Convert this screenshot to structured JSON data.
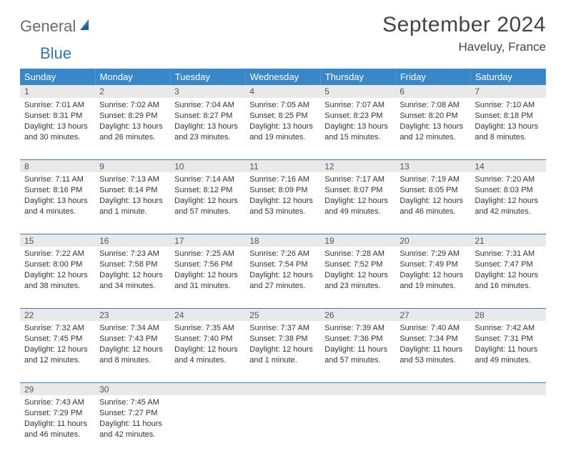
{
  "header": {
    "logo_text1": "General",
    "logo_text2": "Blue",
    "month_title": "September 2024",
    "location": "Haveluy, France"
  },
  "day_headers": [
    "Sunday",
    "Monday",
    "Tuesday",
    "Wednesday",
    "Thursday",
    "Friday",
    "Saturday"
  ],
  "colors": {
    "header_bg": "#3a87c8",
    "row_divider": "#4679a8",
    "daynum_bg": "#e9e9e9"
  },
  "weeks": [
    {
      "days": [
        {
          "num": "1",
          "sunrise": "Sunrise: 7:01 AM",
          "sunset": "Sunset: 8:31 PM",
          "day1": "Daylight: 13 hours",
          "day2": "and 30 minutes."
        },
        {
          "num": "2",
          "sunrise": "Sunrise: 7:02 AM",
          "sunset": "Sunset: 8:29 PM",
          "day1": "Daylight: 13 hours",
          "day2": "and 26 minutes."
        },
        {
          "num": "3",
          "sunrise": "Sunrise: 7:04 AM",
          "sunset": "Sunset: 8:27 PM",
          "day1": "Daylight: 13 hours",
          "day2": "and 23 minutes."
        },
        {
          "num": "4",
          "sunrise": "Sunrise: 7:05 AM",
          "sunset": "Sunset: 8:25 PM",
          "day1": "Daylight: 13 hours",
          "day2": "and 19 minutes."
        },
        {
          "num": "5",
          "sunrise": "Sunrise: 7:07 AM",
          "sunset": "Sunset: 8:23 PM",
          "day1": "Daylight: 13 hours",
          "day2": "and 15 minutes."
        },
        {
          "num": "6",
          "sunrise": "Sunrise: 7:08 AM",
          "sunset": "Sunset: 8:20 PM",
          "day1": "Daylight: 13 hours",
          "day2": "and 12 minutes."
        },
        {
          "num": "7",
          "sunrise": "Sunrise: 7:10 AM",
          "sunset": "Sunset: 8:18 PM",
          "day1": "Daylight: 13 hours",
          "day2": "and 8 minutes."
        }
      ]
    },
    {
      "days": [
        {
          "num": "8",
          "sunrise": "Sunrise: 7:11 AM",
          "sunset": "Sunset: 8:16 PM",
          "day1": "Daylight: 13 hours",
          "day2": "and 4 minutes."
        },
        {
          "num": "9",
          "sunrise": "Sunrise: 7:13 AM",
          "sunset": "Sunset: 8:14 PM",
          "day1": "Daylight: 13 hours",
          "day2": "and 1 minute."
        },
        {
          "num": "10",
          "sunrise": "Sunrise: 7:14 AM",
          "sunset": "Sunset: 8:12 PM",
          "day1": "Daylight: 12 hours",
          "day2": "and 57 minutes."
        },
        {
          "num": "11",
          "sunrise": "Sunrise: 7:16 AM",
          "sunset": "Sunset: 8:09 PM",
          "day1": "Daylight: 12 hours",
          "day2": "and 53 minutes."
        },
        {
          "num": "12",
          "sunrise": "Sunrise: 7:17 AM",
          "sunset": "Sunset: 8:07 PM",
          "day1": "Daylight: 12 hours",
          "day2": "and 49 minutes."
        },
        {
          "num": "13",
          "sunrise": "Sunrise: 7:19 AM",
          "sunset": "Sunset: 8:05 PM",
          "day1": "Daylight: 12 hours",
          "day2": "and 46 minutes."
        },
        {
          "num": "14",
          "sunrise": "Sunrise: 7:20 AM",
          "sunset": "Sunset: 8:03 PM",
          "day1": "Daylight: 12 hours",
          "day2": "and 42 minutes."
        }
      ]
    },
    {
      "days": [
        {
          "num": "15",
          "sunrise": "Sunrise: 7:22 AM",
          "sunset": "Sunset: 8:00 PM",
          "day1": "Daylight: 12 hours",
          "day2": "and 38 minutes."
        },
        {
          "num": "16",
          "sunrise": "Sunrise: 7:23 AM",
          "sunset": "Sunset: 7:58 PM",
          "day1": "Daylight: 12 hours",
          "day2": "and 34 minutes."
        },
        {
          "num": "17",
          "sunrise": "Sunrise: 7:25 AM",
          "sunset": "Sunset: 7:56 PM",
          "day1": "Daylight: 12 hours",
          "day2": "and 31 minutes."
        },
        {
          "num": "18",
          "sunrise": "Sunrise: 7:26 AM",
          "sunset": "Sunset: 7:54 PM",
          "day1": "Daylight: 12 hours",
          "day2": "and 27 minutes."
        },
        {
          "num": "19",
          "sunrise": "Sunrise: 7:28 AM",
          "sunset": "Sunset: 7:52 PM",
          "day1": "Daylight: 12 hours",
          "day2": "and 23 minutes."
        },
        {
          "num": "20",
          "sunrise": "Sunrise: 7:29 AM",
          "sunset": "Sunset: 7:49 PM",
          "day1": "Daylight: 12 hours",
          "day2": "and 19 minutes."
        },
        {
          "num": "21",
          "sunrise": "Sunrise: 7:31 AM",
          "sunset": "Sunset: 7:47 PM",
          "day1": "Daylight: 12 hours",
          "day2": "and 16 minutes."
        }
      ]
    },
    {
      "days": [
        {
          "num": "22",
          "sunrise": "Sunrise: 7:32 AM",
          "sunset": "Sunset: 7:45 PM",
          "day1": "Daylight: 12 hours",
          "day2": "and 12 minutes."
        },
        {
          "num": "23",
          "sunrise": "Sunrise: 7:34 AM",
          "sunset": "Sunset: 7:43 PM",
          "day1": "Daylight: 12 hours",
          "day2": "and 8 minutes."
        },
        {
          "num": "24",
          "sunrise": "Sunrise: 7:35 AM",
          "sunset": "Sunset: 7:40 PM",
          "day1": "Daylight: 12 hours",
          "day2": "and 4 minutes."
        },
        {
          "num": "25",
          "sunrise": "Sunrise: 7:37 AM",
          "sunset": "Sunset: 7:38 PM",
          "day1": "Daylight: 12 hours",
          "day2": "and 1 minute."
        },
        {
          "num": "26",
          "sunrise": "Sunrise: 7:39 AM",
          "sunset": "Sunset: 7:36 PM",
          "day1": "Daylight: 11 hours",
          "day2": "and 57 minutes."
        },
        {
          "num": "27",
          "sunrise": "Sunrise: 7:40 AM",
          "sunset": "Sunset: 7:34 PM",
          "day1": "Daylight: 11 hours",
          "day2": "and 53 minutes."
        },
        {
          "num": "28",
          "sunrise": "Sunrise: 7:42 AM",
          "sunset": "Sunset: 7:31 PM",
          "day1": "Daylight: 11 hours",
          "day2": "and 49 minutes."
        }
      ]
    },
    {
      "days": [
        {
          "num": "29",
          "sunrise": "Sunrise: 7:43 AM",
          "sunset": "Sunset: 7:29 PM",
          "day1": "Daylight: 11 hours",
          "day2": "and 46 minutes."
        },
        {
          "num": "30",
          "sunrise": "Sunrise: 7:45 AM",
          "sunset": "Sunset: 7:27 PM",
          "day1": "Daylight: 11 hours",
          "day2": "and 42 minutes."
        },
        {
          "empty": true
        },
        {
          "empty": true
        },
        {
          "empty": true
        },
        {
          "empty": true
        },
        {
          "empty": true
        }
      ]
    }
  ]
}
